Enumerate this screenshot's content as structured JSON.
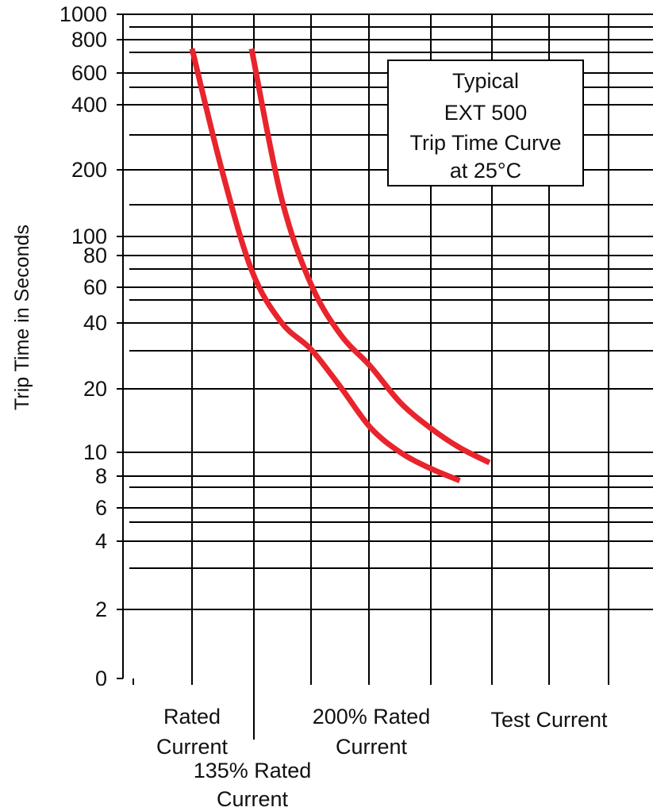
{
  "chart_data": {
    "type": "line",
    "title_lines": [
      "Typical",
      "EXT 500",
      "Trip Time Curve",
      "at 25°C"
    ],
    "ylabel": "Trip Time in Seconds",
    "y_scale": "log",
    "y_ticks": [
      "1000",
      "800",
      "600",
      "400",
      "200",
      "100",
      "80",
      "60",
      "40",
      "20",
      "10",
      "8",
      "6",
      "4",
      "2",
      "0"
    ],
    "x_labels": [
      {
        "lines": [
          "Rated",
          "Current"
        ]
      },
      {
        "lines": [
          "135% Rated",
          "Current"
        ]
      },
      {
        "lines": [
          "200% Rated",
          "Current"
        ]
      },
      {
        "lines": [
          "Test Current"
        ]
      }
    ],
    "series": [
      {
        "color": "#e8242c",
        "points": [
          [
            0.0,
            700
          ],
          [
            0.5,
            200
          ],
          [
            1.0,
            70
          ],
          [
            1.5,
            40
          ],
          [
            2.0,
            30
          ],
          [
            2.5,
            20
          ],
          [
            3.0,
            13
          ],
          [
            3.5,
            10
          ],
          [
            4.0,
            8.5
          ],
          [
            4.5,
            7.5
          ]
        ]
      },
      {
        "color": "#e8242c",
        "points": [
          [
            1.0,
            700
          ],
          [
            1.5,
            150
          ],
          [
            2.0,
            60
          ],
          [
            2.5,
            35
          ],
          [
            3.0,
            25
          ],
          [
            3.5,
            17
          ],
          [
            4.0,
            13
          ],
          [
            4.5,
            10.5
          ],
          [
            5.0,
            9
          ]
        ]
      }
    ]
  }
}
